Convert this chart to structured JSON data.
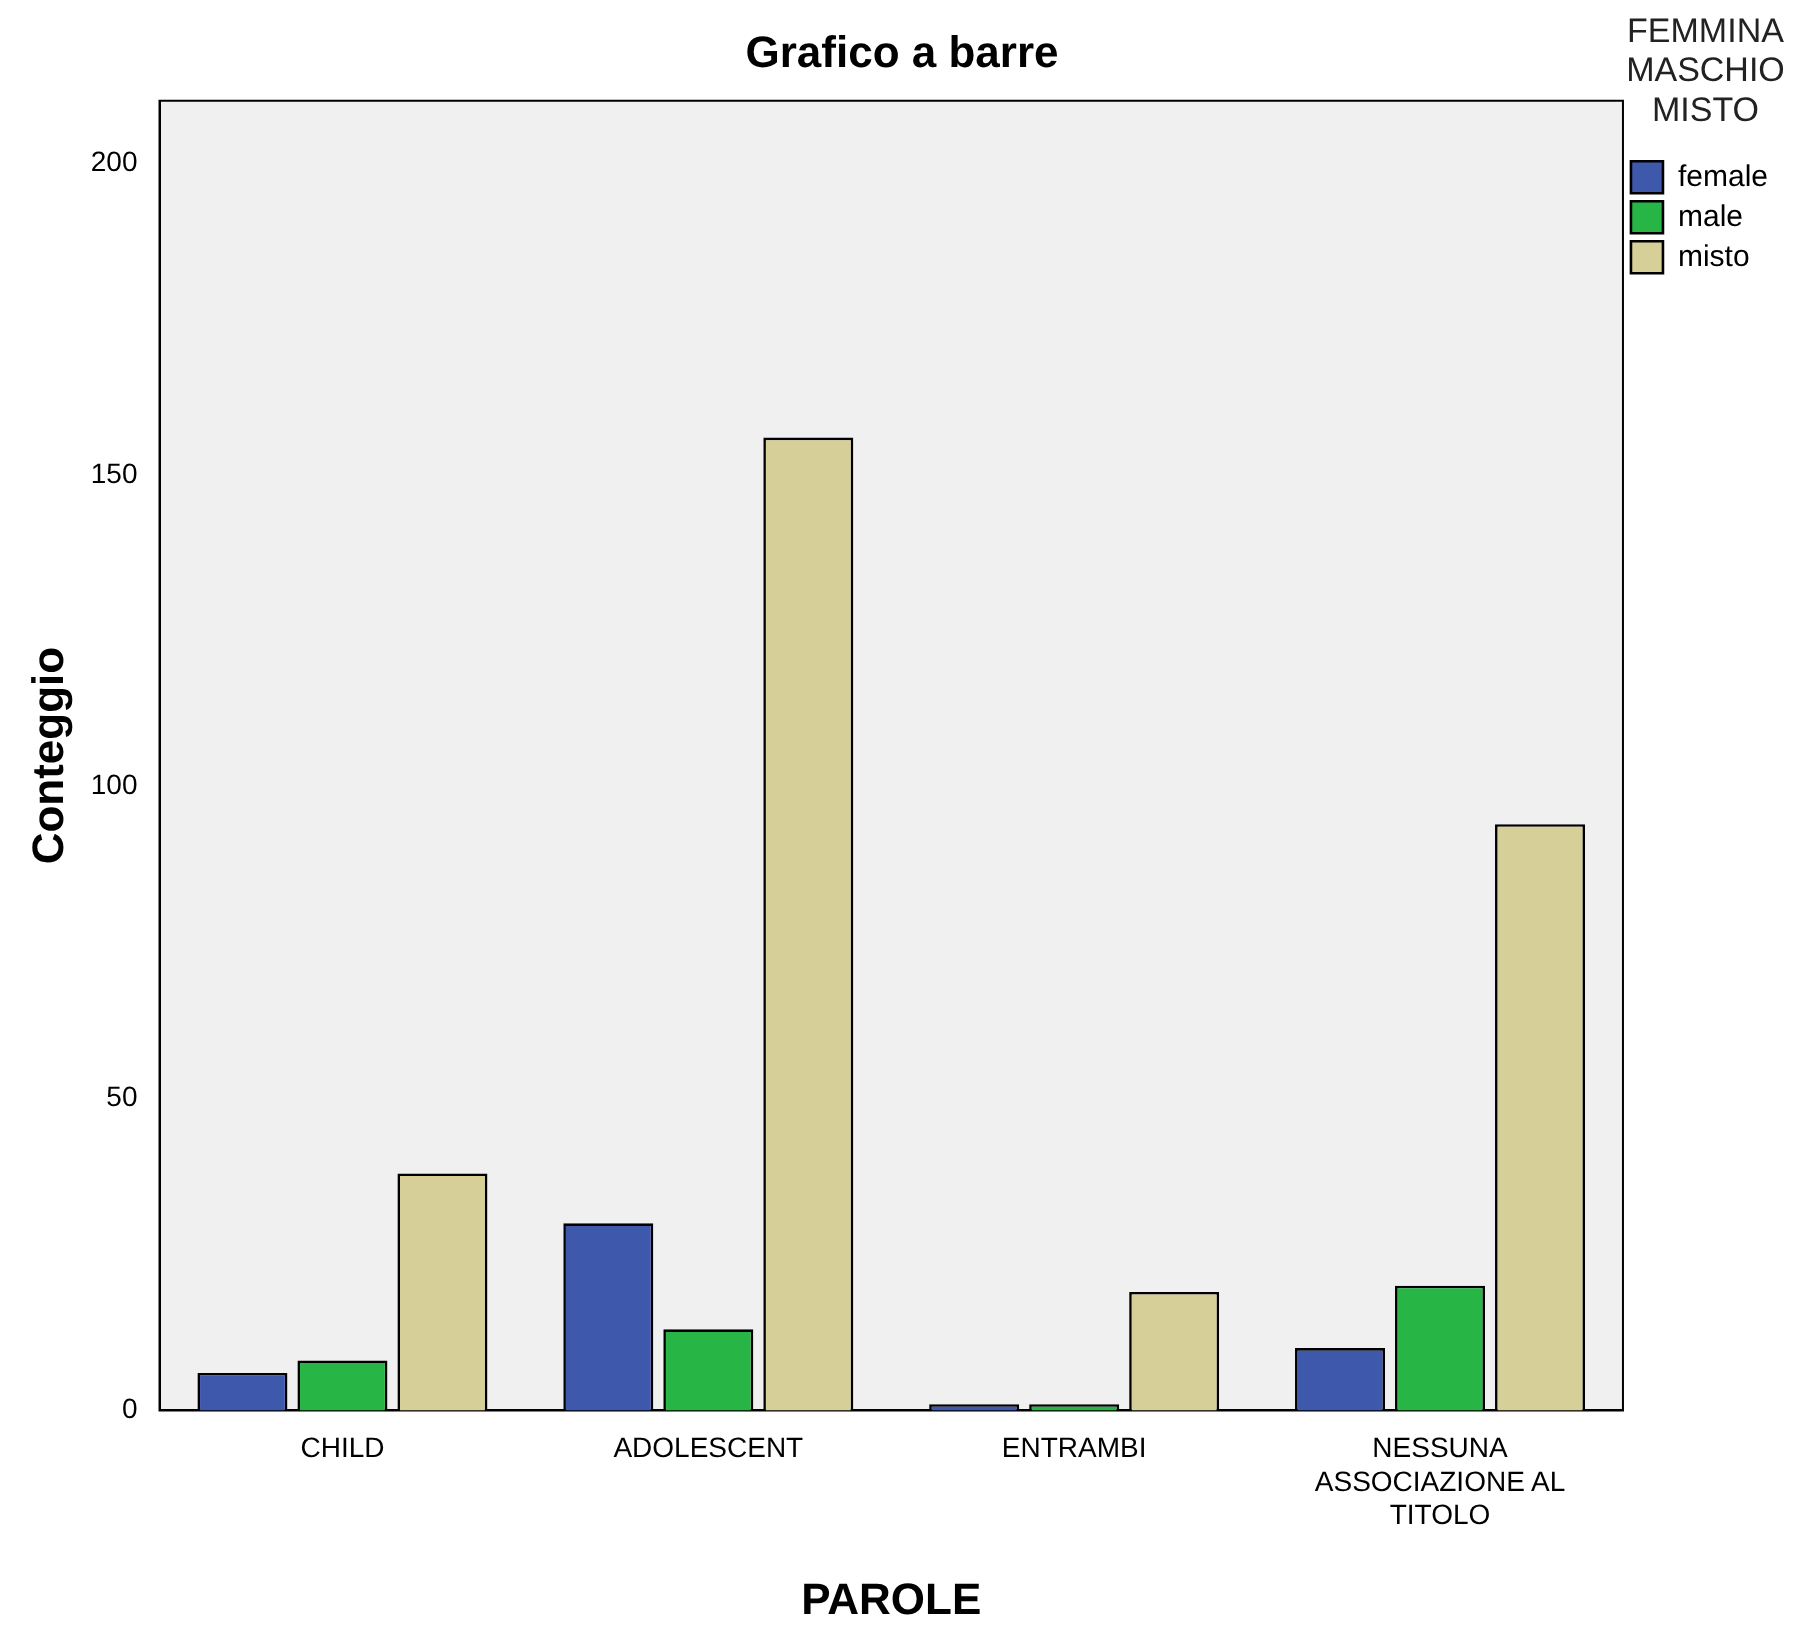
{
  "chart_data": {
    "type": "bar",
    "title": "Grafico a barre",
    "xlabel": "PAROLE",
    "ylabel": "Conteggio",
    "legend_title": "FEMMINA MASCHIO MISTO",
    "legend": "right",
    "grid": false,
    "categories": [
      "CHILD",
      "ADOLESCENT",
      "ENTRAMBI",
      "NESSUNA ASSOCIAZIONE AL TITOLO"
    ],
    "series": [
      {
        "name": "female",
        "color": "#3e58ac",
        "values": [
          6,
          30,
          1,
          10
        ]
      },
      {
        "name": "male",
        "color": "#27b545",
        "values": [
          8,
          13,
          1,
          20
        ]
      },
      {
        "name": "misto",
        "color": "#d6cf98",
        "values": [
          38,
          156,
          19,
          94
        ]
      }
    ],
    "ylim": [
      0,
      210
    ],
    "yticks": [
      0,
      50,
      100,
      150,
      200
    ]
  }
}
